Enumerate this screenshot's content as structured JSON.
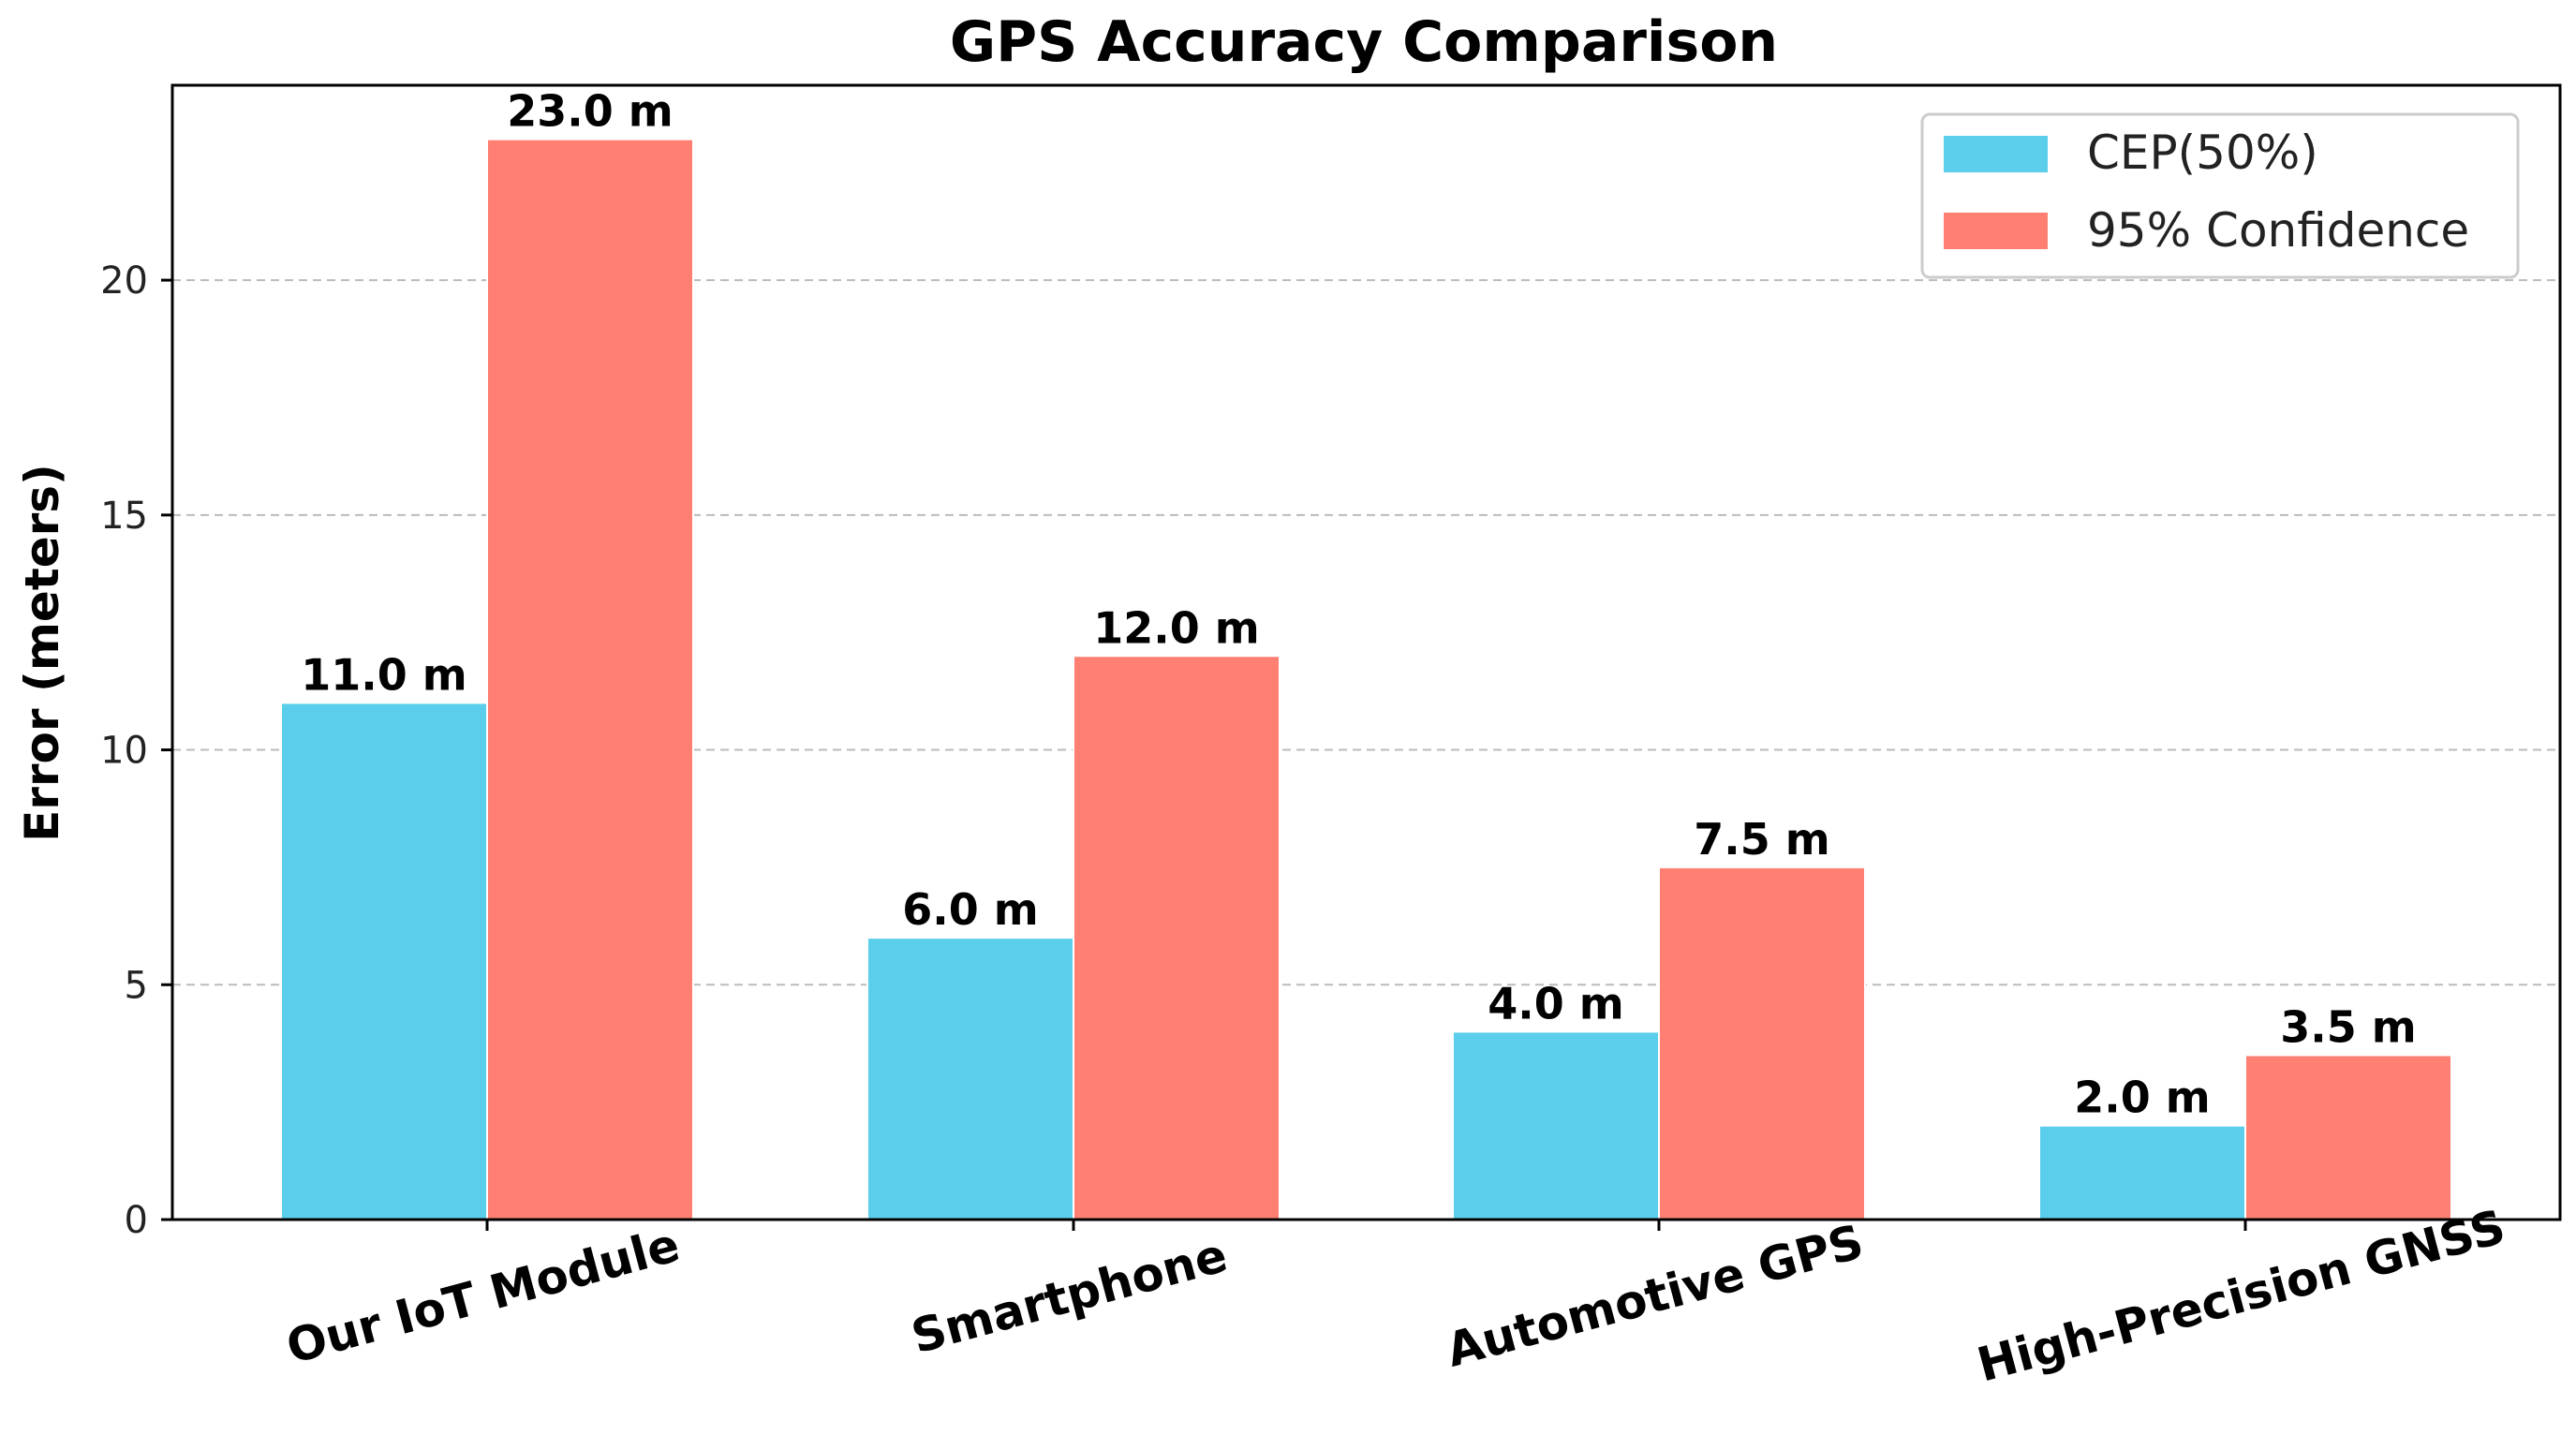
{
  "chart_data": {
    "type": "bar",
    "title": "GPS Accuracy Comparison",
    "xlabel": "",
    "ylabel": "Error (meters)",
    "categories": [
      "Our IoT Module",
      "Smartphone",
      "Automotive GPS",
      "High-Precision GNSS"
    ],
    "series": [
      {
        "name": "CEP(50%)",
        "color": "#5ACEEB",
        "values": [
          11.0,
          6.0,
          4.0,
          2.0
        ],
        "labels": [
          "11.0 m",
          "6.0 m",
          "4.0 m",
          "2.0 m"
        ]
      },
      {
        "name": "95% Confidence",
        "color": "#FF8073",
        "values": [
          23.0,
          12.0,
          7.5,
          3.5
        ],
        "labels": [
          "23.0 m",
          "12.0 m",
          "7.5 m",
          "3.5 m"
        ]
      }
    ],
    "ylim": [
      0,
      24.15
    ],
    "yticks": [
      0,
      5,
      10,
      15,
      20
    ],
    "ytick_labels": [
      "0",
      "5",
      "10",
      "15",
      "20"
    ],
    "grid": "y-dashed",
    "legend_position": "upper right"
  }
}
